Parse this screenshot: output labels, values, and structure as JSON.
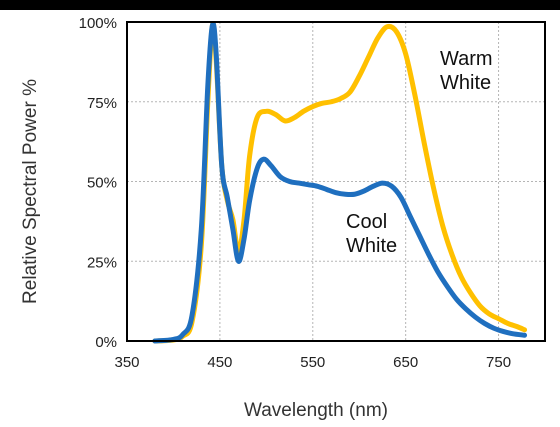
{
  "chart_data": {
    "type": "line",
    "xlabel": "Wavelength (nm)",
    "ylabel": "Relative Spectral Power %",
    "xlim": [
      350,
      800
    ],
    "ylim": [
      0,
      100
    ],
    "x_ticks": [
      350,
      450,
      550,
      650,
      750
    ],
    "y_ticks": [
      0,
      25,
      50,
      75,
      100
    ],
    "y_tick_labels": [
      "0%",
      "25%",
      "50%",
      "75%",
      "100%"
    ],
    "grid": true,
    "series": [
      {
        "name": "Warm White",
        "color": "#FFC000",
        "points": [
          [
            380,
            0
          ],
          [
            400,
            0.3
          ],
          [
            410,
            1.5
          ],
          [
            420,
            6
          ],
          [
            430,
            30
          ],
          [
            437,
            75
          ],
          [
            442,
            99
          ],
          [
            446,
            88
          ],
          [
            452,
            55
          ],
          [
            458,
            44
          ],
          [
            464,
            38
          ],
          [
            470,
            28
          ],
          [
            476,
            38
          ],
          [
            482,
            58
          ],
          [
            490,
            70
          ],
          [
            500,
            72
          ],
          [
            510,
            71
          ],
          [
            520,
            69
          ],
          [
            530,
            70
          ],
          [
            540,
            72
          ],
          [
            550,
            73.5
          ],
          [
            560,
            74.5
          ],
          [
            570,
            75
          ],
          [
            580,
            76
          ],
          [
            590,
            78
          ],
          [
            600,
            83
          ],
          [
            610,
            89
          ],
          [
            620,
            95
          ],
          [
            630,
            98.5
          ],
          [
            640,
            97
          ],
          [
            650,
            90
          ],
          [
            660,
            77
          ],
          [
            670,
            62
          ],
          [
            680,
            48
          ],
          [
            690,
            36
          ],
          [
            700,
            27
          ],
          [
            710,
            20
          ],
          [
            720,
            15
          ],
          [
            730,
            11
          ],
          [
            740,
            8.5
          ],
          [
            750,
            7
          ],
          [
            760,
            5.5
          ],
          [
            770,
            4.5
          ],
          [
            778,
            3.5
          ]
        ]
      },
      {
        "name": "Cool White",
        "color": "#1F6FBF",
        "points": [
          [
            380,
            0
          ],
          [
            400,
            0.5
          ],
          [
            410,
            2
          ],
          [
            420,
            8
          ],
          [
            430,
            35
          ],
          [
            437,
            80
          ],
          [
            442,
            99
          ],
          [
            446,
            90
          ],
          [
            452,
            55
          ],
          [
            458,
            45
          ],
          [
            464,
            35
          ],
          [
            470,
            25
          ],
          [
            476,
            32
          ],
          [
            482,
            44
          ],
          [
            490,
            54
          ],
          [
            497,
            57
          ],
          [
            505,
            55
          ],
          [
            515,
            51.5
          ],
          [
            525,
            50
          ],
          [
            535,
            49.5
          ],
          [
            545,
            49
          ],
          [
            555,
            48.5
          ],
          [
            565,
            47.5
          ],
          [
            575,
            46.5
          ],
          [
            585,
            46
          ],
          [
            595,
            46
          ],
          [
            605,
            47
          ],
          [
            615,
            48.5
          ],
          [
            625,
            49.5
          ],
          [
            635,
            48.5
          ],
          [
            645,
            45
          ],
          [
            655,
            39
          ],
          [
            665,
            33
          ],
          [
            675,
            27
          ],
          [
            685,
            21.5
          ],
          [
            695,
            17
          ],
          [
            705,
            13
          ],
          [
            715,
            10
          ],
          [
            725,
            7.5
          ],
          [
            735,
            5.5
          ],
          [
            745,
            4
          ],
          [
            755,
            3
          ],
          [
            765,
            2.3
          ],
          [
            778,
            1.8
          ]
        ]
      }
    ],
    "annotations": [
      {
        "lines": [
          "Warm",
          "White"
        ],
        "series": "Warm White"
      },
      {
        "lines": [
          "Cool",
          "White"
        ],
        "series": "Cool White"
      }
    ]
  }
}
